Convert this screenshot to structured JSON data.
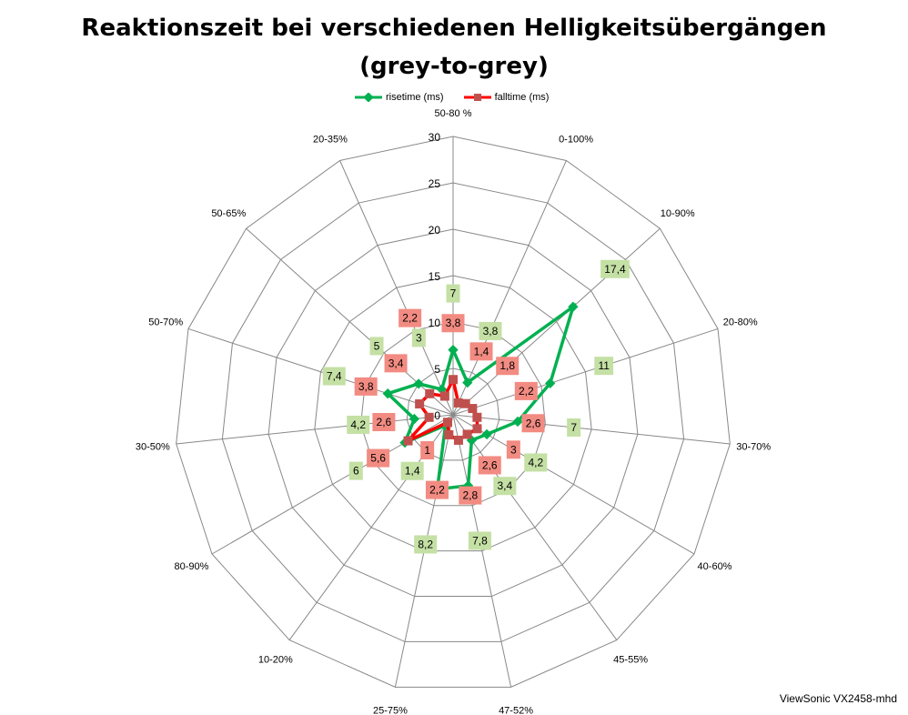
{
  "chart_data": {
    "type": "radar",
    "title": "Reaktionszeit bei verschiedenen Helligkeitsübergängen",
    "title_line2": "(grey-to-grey)",
    "categories": [
      "50-80 %",
      "0-100%",
      "10-90%",
      "20-80%",
      "30-70%",
      "40-60%",
      "45-55%",
      "47-52%",
      "25-75%",
      "10-20%",
      "80-90%",
      "30-50%",
      "50-70%",
      "50-65%",
      "20-35%"
    ],
    "series": [
      {
        "name": "risetime (ms)",
        "color": "#00b050",
        "label_bg": "#c4e0a4",
        "values": [
          7,
          3.8,
          17.4,
          11,
          7,
          4.2,
          3.4,
          7.8,
          8.2,
          1.4,
          6,
          4.2,
          7.4,
          5,
          3
        ]
      },
      {
        "name": "falltime (ms)",
        "color": "#ff0000",
        "marker_color": "#c0504d",
        "label_bg": "#f28b82",
        "values": [
          3.8,
          1.4,
          1.8,
          2.2,
          2.6,
          3,
          2.6,
          2.8,
          2.2,
          1,
          5.6,
          2.6,
          3.8,
          3.4,
          2.2
        ]
      }
    ],
    "rlim": [
      0,
      30
    ],
    "ticks": [
      0,
      5,
      10,
      15,
      20,
      25,
      30
    ],
    "legend": "top"
  },
  "credit": "ViewSonic VX2458-mhd"
}
